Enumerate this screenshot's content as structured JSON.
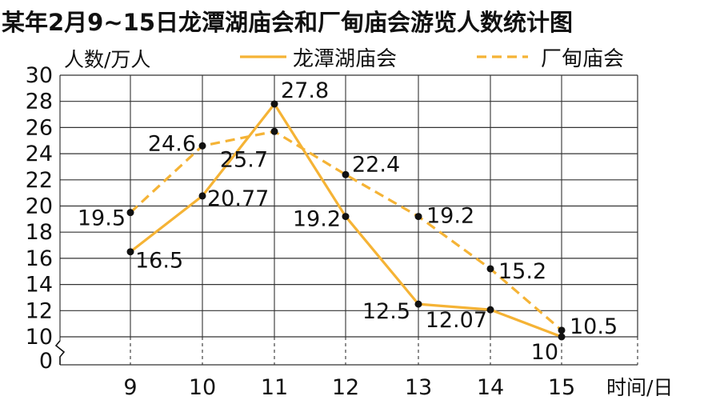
{
  "chart_data": {
    "type": "line",
    "title": "某年2月9~15日龙潭湖庙会和厂甸庙会游览人数统计图",
    "ylabel": "人数/万人",
    "xlabel": "时间/日",
    "categories": [
      "9",
      "10",
      "11",
      "12",
      "13",
      "14",
      "15"
    ],
    "y_ticks": [
      "0",
      "10",
      "12",
      "14",
      "16",
      "18",
      "20",
      "22",
      "24",
      "26",
      "28",
      "30"
    ],
    "ylim": [
      10,
      30
    ],
    "axis_break": true,
    "grid": true,
    "legend_position": "top",
    "series": [
      {
        "name": "龙潭湖庙会",
        "style": "solid",
        "color": "#f5b335",
        "values": [
          16.5,
          20.77,
          27.8,
          19.2,
          12.5,
          12.07,
          10
        ],
        "labels": [
          "16.5",
          "20.77",
          "27.8",
          "19.2",
          "12.5",
          "12.07",
          "10"
        ]
      },
      {
        "name": "厂甸庙会",
        "style": "dashed",
        "color": "#f5b335",
        "values": [
          19.5,
          24.6,
          25.7,
          22.4,
          19.2,
          15.2,
          10.5
        ],
        "labels": [
          "19.5",
          "24.6",
          "25.7",
          "22.4",
          "19.2",
          "15.2",
          "10.5"
        ]
      }
    ]
  }
}
